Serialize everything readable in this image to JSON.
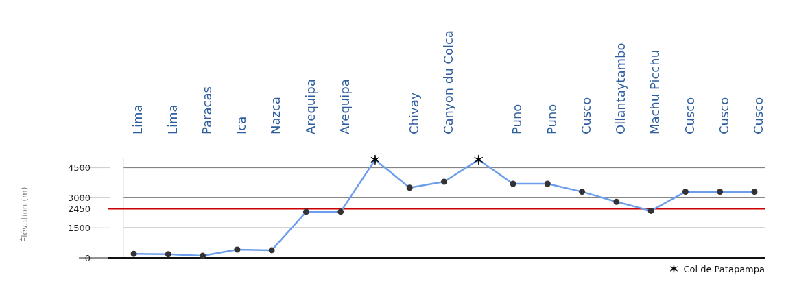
{
  "chart_data": {
    "type": "line",
    "ylabel": "Élévation (m)",
    "categories": [
      "Lima",
      "Lima",
      "Paracas",
      "Ica",
      "Nazca",
      "Arequipa",
      "Arequipa",
      null,
      "Chivay",
      "Canyon du Colca",
      null,
      "Puno",
      "Puno",
      "Cusco",
      "Ollantaytambo",
      "Machu Picchu",
      "Cusco",
      "Cusco",
      "Cusco"
    ],
    "ylim": [
      0,
      5000
    ],
    "yticks": [
      0,
      1500,
      3000,
      4500
    ],
    "grid": "y",
    "legend": "bottom right",
    "ref_lines": [
      {
        "axis": "y",
        "value": 2450,
        "label": "2450",
        "color": "#cc0000"
      }
    ],
    "series": [
      {
        "type": "line",
        "color": "#6d9eeb",
        "marker": "none",
        "values": [
          200,
          180,
          100,
          410,
          380,
          2300,
          2300,
          4900,
          3500,
          3800,
          4900,
          3700,
          3700,
          3300,
          2800,
          2350,
          3300,
          3300,
          3300
        ]
      },
      {
        "type": "scatter",
        "color": "#333333",
        "marker": "circle",
        "values": [
          200,
          180,
          100,
          410,
          380,
          2300,
          2300,
          null,
          3500,
          3800,
          null,
          3700,
          3700,
          3300,
          2800,
          2350,
          3300,
          3300,
          3300
        ]
      },
      {
        "type": "scatter",
        "name": "Col de Patapampa",
        "color": "#000000",
        "marker": "cross",
        "values": [
          null,
          null,
          null,
          null,
          null,
          null,
          null,
          4900,
          null,
          null,
          4900,
          null,
          null,
          null,
          null,
          null,
          null,
          null,
          null
        ]
      }
    ]
  }
}
